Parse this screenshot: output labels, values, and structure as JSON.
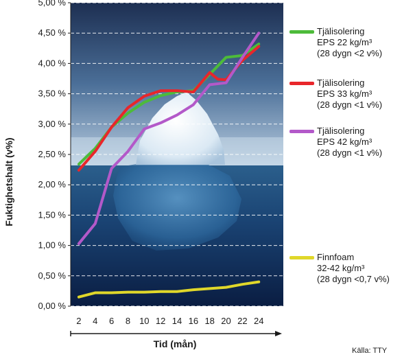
{
  "chart_data": {
    "type": "line",
    "xlabel": "Tid (mån)",
    "ylabel": "Fuktighetshalt (v%)",
    "x": [
      2,
      4,
      6,
      8,
      10,
      12,
      14,
      16,
      18,
      20,
      22,
      24
    ],
    "xlim": [
      1,
      27
    ],
    "ylim": [
      0,
      5.0
    ],
    "y_ticks": [
      "0,00 %",
      "0,50 %",
      "1,00 %",
      "1,50 %",
      "2,00 %",
      "2,50 %",
      "3,00 %",
      "3,50 %",
      "4,00 %",
      "4,50 %",
      "5,00 %"
    ],
    "x_ticks": [
      "2",
      "4",
      "6",
      "8",
      "10",
      "12",
      "14",
      "16",
      "18",
      "20",
      "22",
      "24"
    ],
    "grid": true,
    "background": "iceberg photograph",
    "legend_position": "right",
    "series": [
      {
        "name_lines": [
          "Tjälisolering",
          "EPS 22 kg/m³",
          "(28 dygn <2 v%)"
        ],
        "color": "#4dbb3a",
        "x": [
          2,
          4,
          6,
          8,
          10,
          12,
          14,
          16,
          18,
          20,
          22,
          24
        ],
        "values": [
          2.34,
          2.6,
          2.95,
          3.18,
          3.36,
          3.47,
          3.53,
          3.55,
          3.82,
          4.1,
          4.13,
          4.32
        ]
      },
      {
        "name_lines": [
          "Tjälisolering",
          "EPS 33 kg/m³",
          "(28 dygn <1 v%)"
        ],
        "color": "#e8262b",
        "x": [
          2,
          4,
          6,
          8,
          10,
          12,
          14,
          16,
          18,
          19,
          20,
          22,
          24
        ],
        "values": [
          2.24,
          2.55,
          2.95,
          3.27,
          3.46,
          3.55,
          3.55,
          3.53,
          3.85,
          3.74,
          3.73,
          4.05,
          4.28
        ]
      },
      {
        "name_lines": [
          "Tjälisolering",
          "EPS 42 kg/m³",
          "(28 dygn <1 v%)"
        ],
        "color": "#b359c9",
        "x": [
          2,
          4,
          6,
          8,
          10,
          12,
          14,
          16,
          18,
          20,
          22,
          24
        ],
        "values": [
          1.03,
          1.36,
          2.27,
          2.55,
          2.92,
          3.02,
          3.15,
          3.32,
          3.65,
          3.68,
          4.1,
          4.5
        ]
      },
      {
        "name_lines": [
          "Finnfoam",
          "32-42 kg/m³",
          "(28 dygn <0,7 v%)"
        ],
        "color": "#e0d72a",
        "x": [
          2,
          4,
          6,
          8,
          10,
          12,
          14,
          16,
          18,
          20,
          22,
          24
        ],
        "values": [
          0.15,
          0.22,
          0.22,
          0.23,
          0.23,
          0.24,
          0.24,
          0.27,
          0.29,
          0.31,
          0.36,
          0.4
        ]
      }
    ],
    "source": "Källa: TTY"
  }
}
